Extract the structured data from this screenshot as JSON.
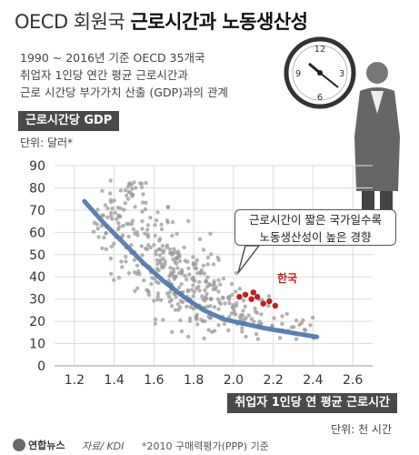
{
  "title": {
    "light": "OECD 회원국",
    "bold": "근로시간과 노동생산성"
  },
  "subtitle_lines": [
    "1990 ~ 2016년 기준 OECD 35개국",
    "취업자 1인당 연간 평균 근로시간과",
    "근로 시간당 부가가치 산출 (GDP)과의 관계"
  ],
  "colors": {
    "scatter": "#9a9a9a",
    "trend": "#4a76a8",
    "korea": "#b8211f",
    "header_box": "#4a4a4a"
  },
  "callout_lines": [
    "근로시간이 짧은 국가일수록",
    "노동생산성이 높은 경향"
  ],
  "korea_label": "한국",
  "footer": {
    "logo": "연합뉴스",
    "source": "자료/ KDI",
    "note": "*2010 구매력평가(PPP) 기준"
  },
  "icons": [
    "clock-icon",
    "man-figure-icon",
    "logo-icon"
  ],
  "chart_data": {
    "type": "scatter",
    "ylabel": "근로시간당 GDP",
    "yunit": "단위: 달러*",
    "xlabel": "취업자 1인당 연 평균 근로시간",
    "xunit": "단위: 천 시간",
    "xlim": [
      1.1,
      2.7
    ],
    "ylim": [
      0,
      90
    ],
    "xticks": [
      "1.2",
      "1.4",
      "1.6",
      "1.8",
      "2.0",
      "2.2",
      "2.4",
      "2.6"
    ],
    "yticks": [
      "0",
      "10",
      "20",
      "30",
      "40",
      "50",
      "60",
      "70",
      "80",
      "90"
    ],
    "grid": true,
    "trend_line": [
      [
        1.25,
        74
      ],
      [
        1.35,
        64
      ],
      [
        1.45,
        55
      ],
      [
        1.55,
        46
      ],
      [
        1.65,
        38
      ],
      [
        1.75,
        31
      ],
      [
        1.85,
        25
      ],
      [
        1.95,
        21
      ],
      [
        2.05,
        19
      ],
      [
        2.15,
        17
      ],
      [
        2.25,
        15.5
      ],
      [
        2.35,
        14
      ],
      [
        2.42,
        13
      ]
    ],
    "korea": [
      [
        2.03,
        31
      ],
      [
        2.06,
        32
      ],
      [
        2.09,
        30
      ],
      [
        2.12,
        31
      ],
      [
        2.15,
        28
      ],
      [
        2.18,
        29
      ],
      [
        2.21,
        27
      ],
      [
        2.1,
        33
      ]
    ],
    "clusters": [
      {
        "cx": 1.4,
        "cy": 65,
        "sx": 0.05,
        "sy": 9,
        "n": 50
      },
      {
        "cx": 1.55,
        "cy": 55,
        "sx": 0.08,
        "sy": 11,
        "n": 80
      },
      {
        "cx": 1.7,
        "cy": 42,
        "sx": 0.09,
        "sy": 10,
        "n": 120
      },
      {
        "cx": 1.85,
        "cy": 30,
        "sx": 0.08,
        "sy": 8,
        "n": 100
      },
      {
        "cx": 2.05,
        "cy": 22,
        "sx": 0.08,
        "sy": 6,
        "n": 50
      },
      {
        "cx": 2.3,
        "cy": 17,
        "sx": 0.07,
        "sy": 3,
        "n": 25
      },
      {
        "cx": 1.5,
        "cy": 78,
        "sx": 0.04,
        "sy": 3,
        "n": 15
      }
    ]
  }
}
